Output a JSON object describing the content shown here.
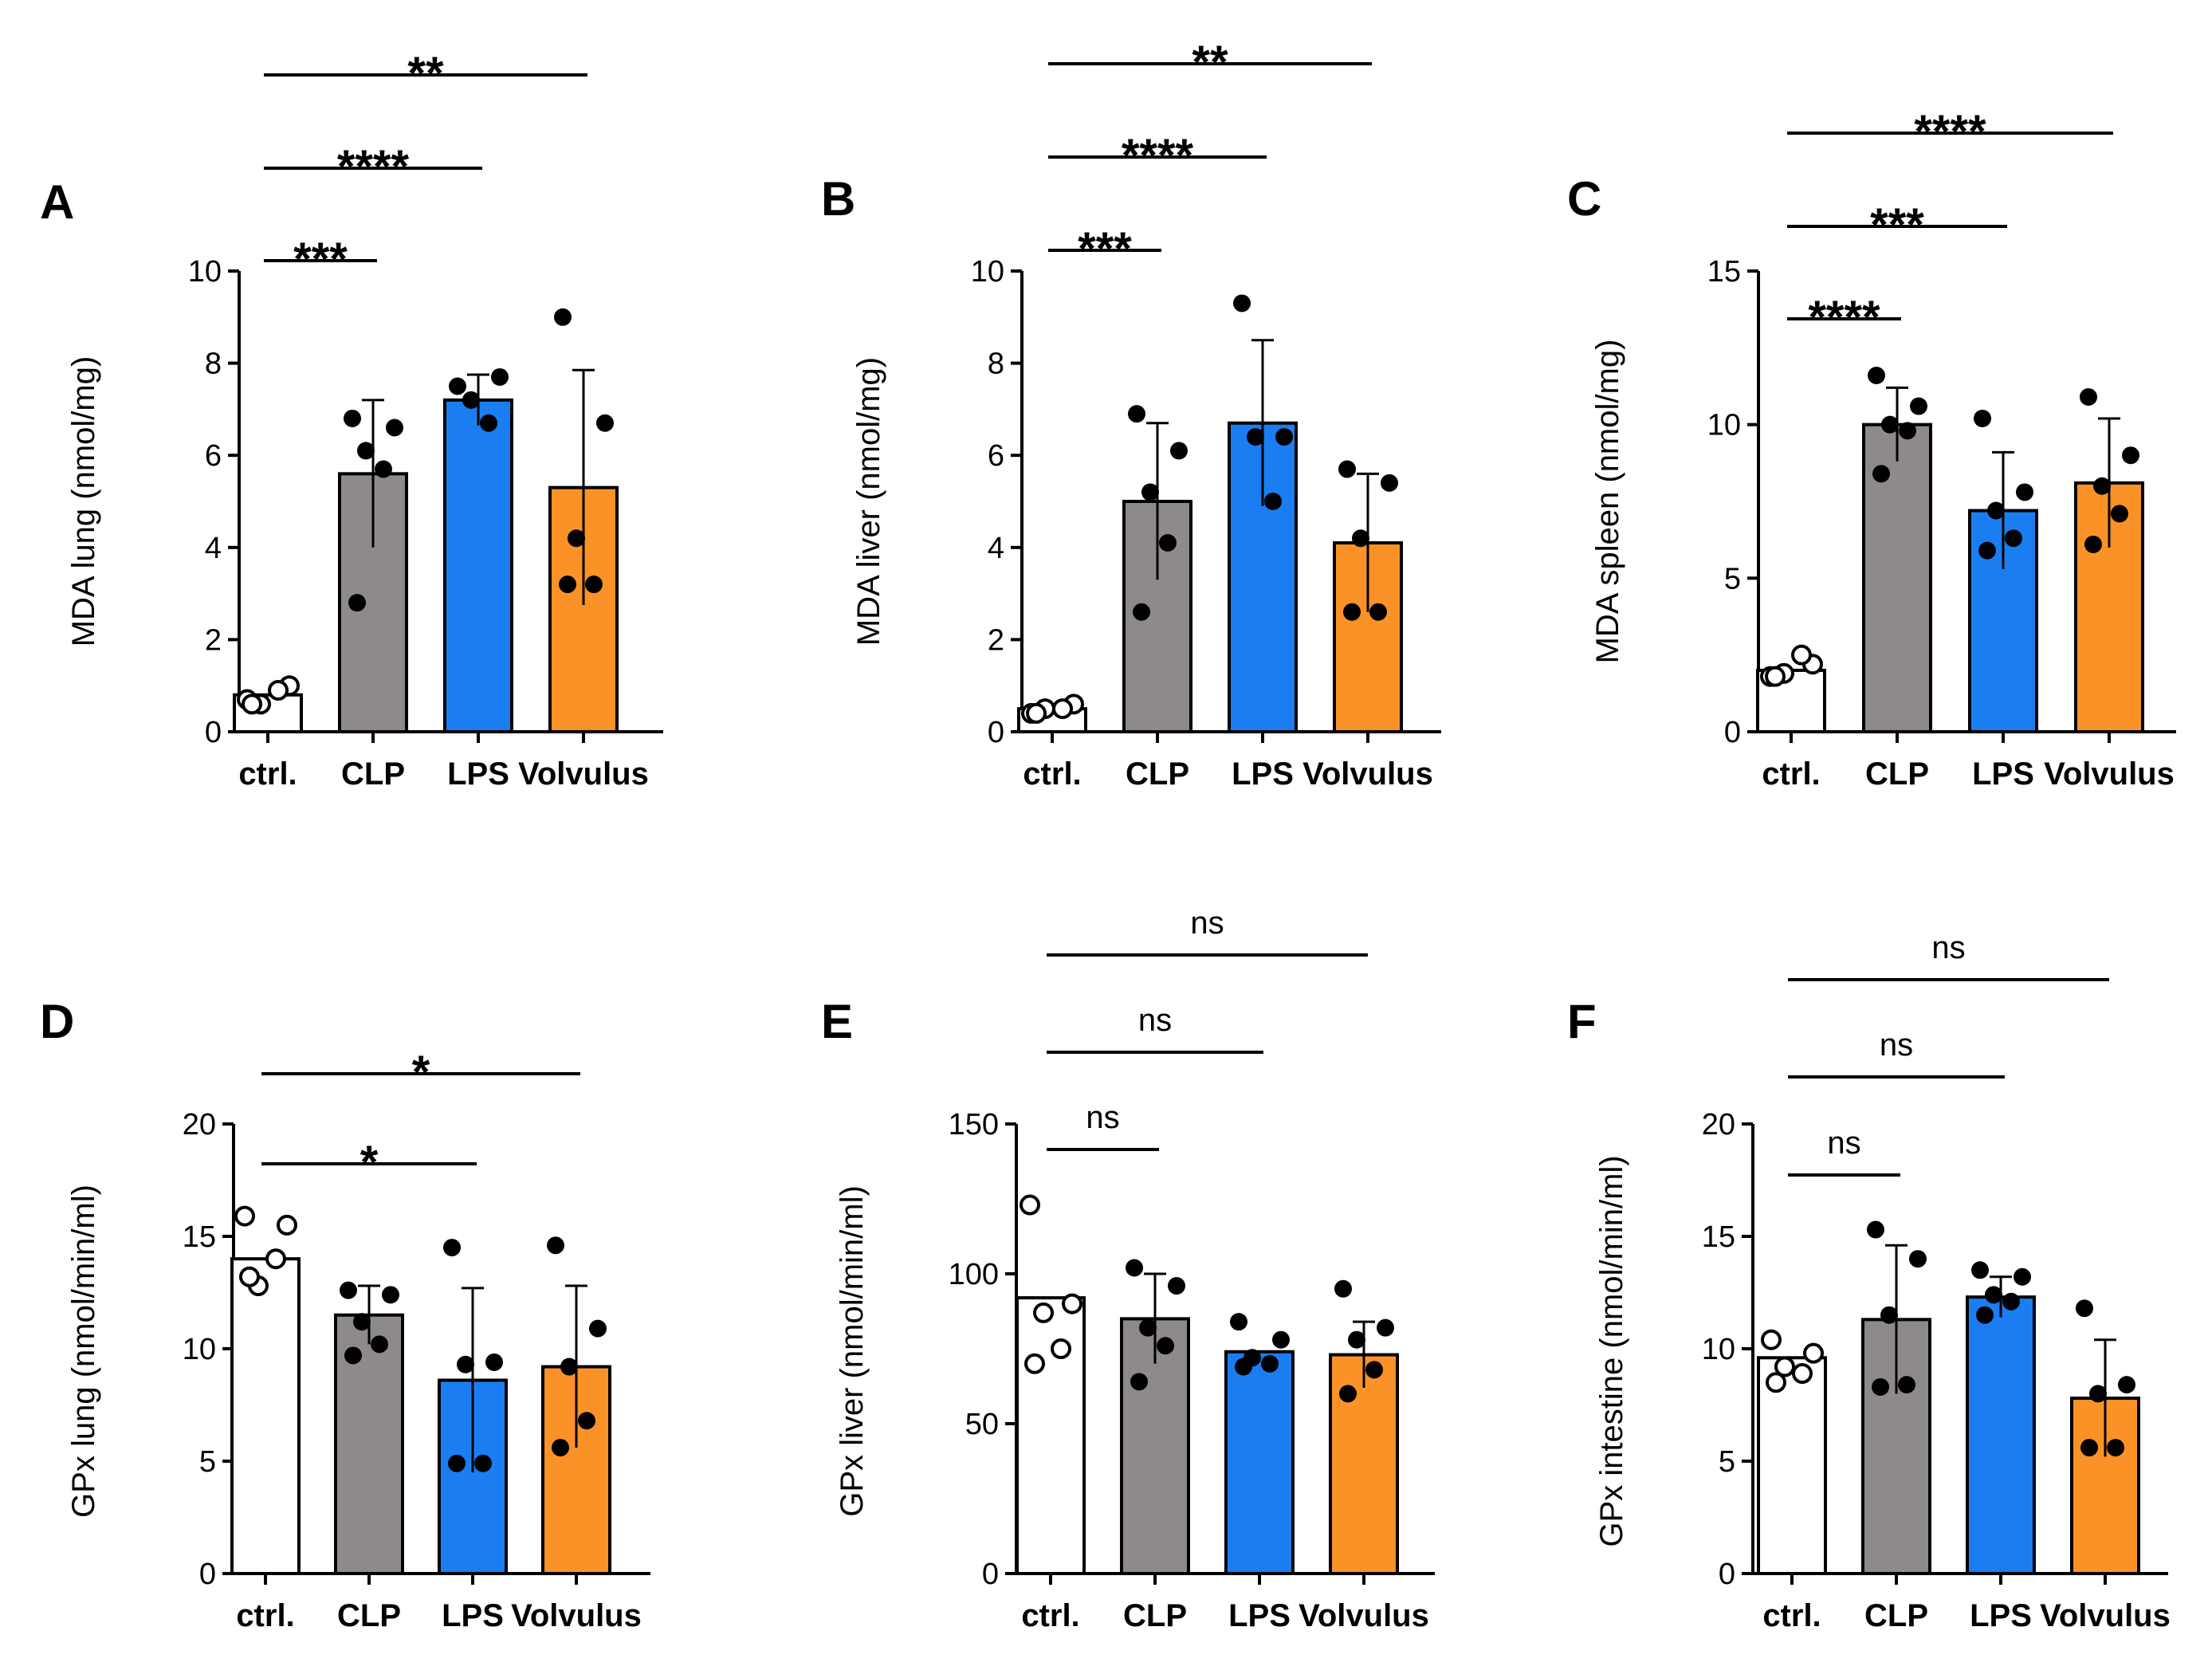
{
  "figure": {
    "categories": [
      "ctrl.",
      "CLP",
      "LPS",
      "Volvulus"
    ],
    "colors": {
      "ctrl.": "#ffffff",
      "CLP": "#8f8a8a",
      "LPS": "#1a7ef2",
      "Volvulus": "#fa9228"
    }
  },
  "chart_data": [
    {
      "panel": "A",
      "type": "bar",
      "ylabel": "MDA lung (nmol/mg)",
      "ylim": [
        0,
        10
      ],
      "yticks": [
        "0",
        "2",
        "4",
        "6",
        "8",
        "10"
      ],
      "categories": [
        "ctrl.",
        "CLP",
        "LPS",
        "Volvulus"
      ],
      "values": [
        0.8,
        5.6,
        7.2,
        5.3
      ],
      "errors": [
        0,
        1.6,
        0.55,
        2.55
      ],
      "points": [
        [
          0.7,
          1.0,
          0.6,
          0.9,
          0.6
        ],
        [
          6.8,
          6.6,
          6.1,
          5.7,
          2.8
        ],
        [
          7.5,
          7.7,
          7.2,
          6.7
        ],
        [
          9.0,
          6.7,
          4.2,
          3.2,
          3.2
        ]
      ],
      "significance": [
        {
          "from": "ctrl.",
          "to": "CLP",
          "label": "***"
        },
        {
          "from": "ctrl.",
          "to": "LPS",
          "label": "****"
        },
        {
          "from": "ctrl.",
          "to": "Volvulus",
          "label": "**"
        }
      ]
    },
    {
      "panel": "B",
      "type": "bar",
      "ylabel": "MDA liver (nmol/mg)",
      "ylim": [
        0,
        10
      ],
      "yticks": [
        "0",
        "2",
        "4",
        "6",
        "8",
        "10"
      ],
      "categories": [
        "ctrl.",
        "CLP",
        "LPS",
        "Volvulus"
      ],
      "values": [
        0.5,
        5.0,
        6.7,
        4.1
      ],
      "errors": [
        0,
        1.7,
        1.8,
        1.5
      ],
      "points": [
        [
          0.4,
          0.6,
          0.5,
          0.5,
          0.4
        ],
        [
          6.9,
          6.1,
          5.2,
          4.1,
          2.6
        ],
        [
          9.3,
          6.4,
          6.4,
          5.0
        ],
        [
          5.7,
          5.4,
          4.2,
          2.6,
          2.6
        ]
      ],
      "significance": [
        {
          "from": "ctrl.",
          "to": "CLP",
          "label": "***"
        },
        {
          "from": "ctrl.",
          "to": "LPS",
          "label": "****"
        },
        {
          "from": "ctrl.",
          "to": "Volvulus",
          "label": "**"
        }
      ]
    },
    {
      "panel": "C",
      "type": "bar",
      "ylabel": "MDA spleen (nmol/mg)",
      "ylim": [
        0,
        15
      ],
      "yticks": [
        "0",
        "5",
        "10",
        "15"
      ],
      "categories": [
        "ctrl.",
        "CLP",
        "LPS",
        "Volvulus"
      ],
      "values": [
        2.0,
        10.0,
        7.2,
        8.1
      ],
      "errors": [
        0,
        1.2,
        1.9,
        2.1
      ],
      "points": [
        [
          1.8,
          2.2,
          1.9,
          2.5,
          1.8
        ],
        [
          11.6,
          10.6,
          10.0,
          9.8,
          8.4
        ],
        [
          10.2,
          7.8,
          7.2,
          6.3,
          5.9
        ],
        [
          10.9,
          9.0,
          8.0,
          7.1,
          6.1
        ]
      ],
      "significance": [
        {
          "from": "ctrl.",
          "to": "CLP",
          "label": "****"
        },
        {
          "from": "ctrl.",
          "to": "LPS",
          "label": "***"
        },
        {
          "from": "ctrl.",
          "to": "Volvulus",
          "label": "****"
        }
      ]
    },
    {
      "panel": "D",
      "type": "bar",
      "ylabel": "GPx lung (nmol/min/ml)",
      "ylim": [
        0,
        20
      ],
      "yticks": [
        "0",
        "5",
        "10",
        "15",
        "20"
      ],
      "categories": [
        "ctrl.",
        "CLP",
        "LPS",
        "Volvulus"
      ],
      "values": [
        14.0,
        11.5,
        8.6,
        9.2
      ],
      "errors": [
        0,
        1.3,
        4.1,
        3.6
      ],
      "points": [
        [
          15.9,
          15.5,
          12.8,
          14.0,
          13.2
        ],
        [
          12.6,
          12.4,
          11.2,
          10.2,
          9.7
        ],
        [
          14.5,
          9.4,
          9.3,
          4.9,
          4.9
        ],
        [
          14.6,
          10.9,
          9.2,
          6.8,
          5.6
        ]
      ],
      "significance": [
        {
          "from": "ctrl.",
          "to": "LPS",
          "label": "*"
        },
        {
          "from": "ctrl.",
          "to": "Volvulus",
          "label": "*"
        }
      ]
    },
    {
      "panel": "E",
      "type": "bar",
      "ylabel": "GPx liver (nmol/min/ml)",
      "ylim": [
        0,
        150
      ],
      "yticks": [
        "0",
        "50",
        "100",
        "150"
      ],
      "categories": [
        "ctrl.",
        "CLP",
        "LPS",
        "Volvulus"
      ],
      "values": [
        92,
        85,
        74,
        73
      ],
      "errors": [
        0,
        15,
        0,
        11
      ],
      "points": [
        [
          123,
          90,
          87,
          75,
          70
        ],
        [
          102,
          96,
          82,
          76,
          64
        ],
        [
          84,
          78,
          72,
          70,
          69
        ],
        [
          95,
          82,
          78,
          68,
          60
        ]
      ],
      "significance": [
        {
          "from": "ctrl.",
          "to": "CLP",
          "label": "ns"
        },
        {
          "from": "ctrl.",
          "to": "LPS",
          "label": "ns"
        },
        {
          "from": "ctrl.",
          "to": "Volvulus",
          "label": "ns"
        }
      ]
    },
    {
      "panel": "F",
      "type": "bar",
      "ylabel": "GPx intestine (nmol/min/ml)",
      "ylim": [
        0,
        20
      ],
      "yticks": [
        "0",
        "5",
        "10",
        "15",
        "20"
      ],
      "categories": [
        "ctrl.",
        "CLP",
        "LPS",
        "Volvulus"
      ],
      "values": [
        9.6,
        11.3,
        12.3,
        7.8
      ],
      "errors": [
        0,
        3.3,
        0.9,
        2.6
      ],
      "points": [
        [
          10.4,
          9.8,
          9.2,
          8.9,
          8.5
        ],
        [
          15.3,
          14.0,
          11.5,
          8.4,
          8.3
        ],
        [
          13.5,
          13.2,
          12.4,
          12.1,
          11.5
        ],
        [
          11.8,
          8.4,
          8.0,
          5.6,
          5.6
        ]
      ],
      "significance": [
        {
          "from": "ctrl.",
          "to": "CLP",
          "label": "ns"
        },
        {
          "from": "ctrl.",
          "to": "LPS",
          "label": "ns"
        },
        {
          "from": "ctrl.",
          "to": "Volvulus",
          "label": "ns"
        }
      ]
    }
  ]
}
